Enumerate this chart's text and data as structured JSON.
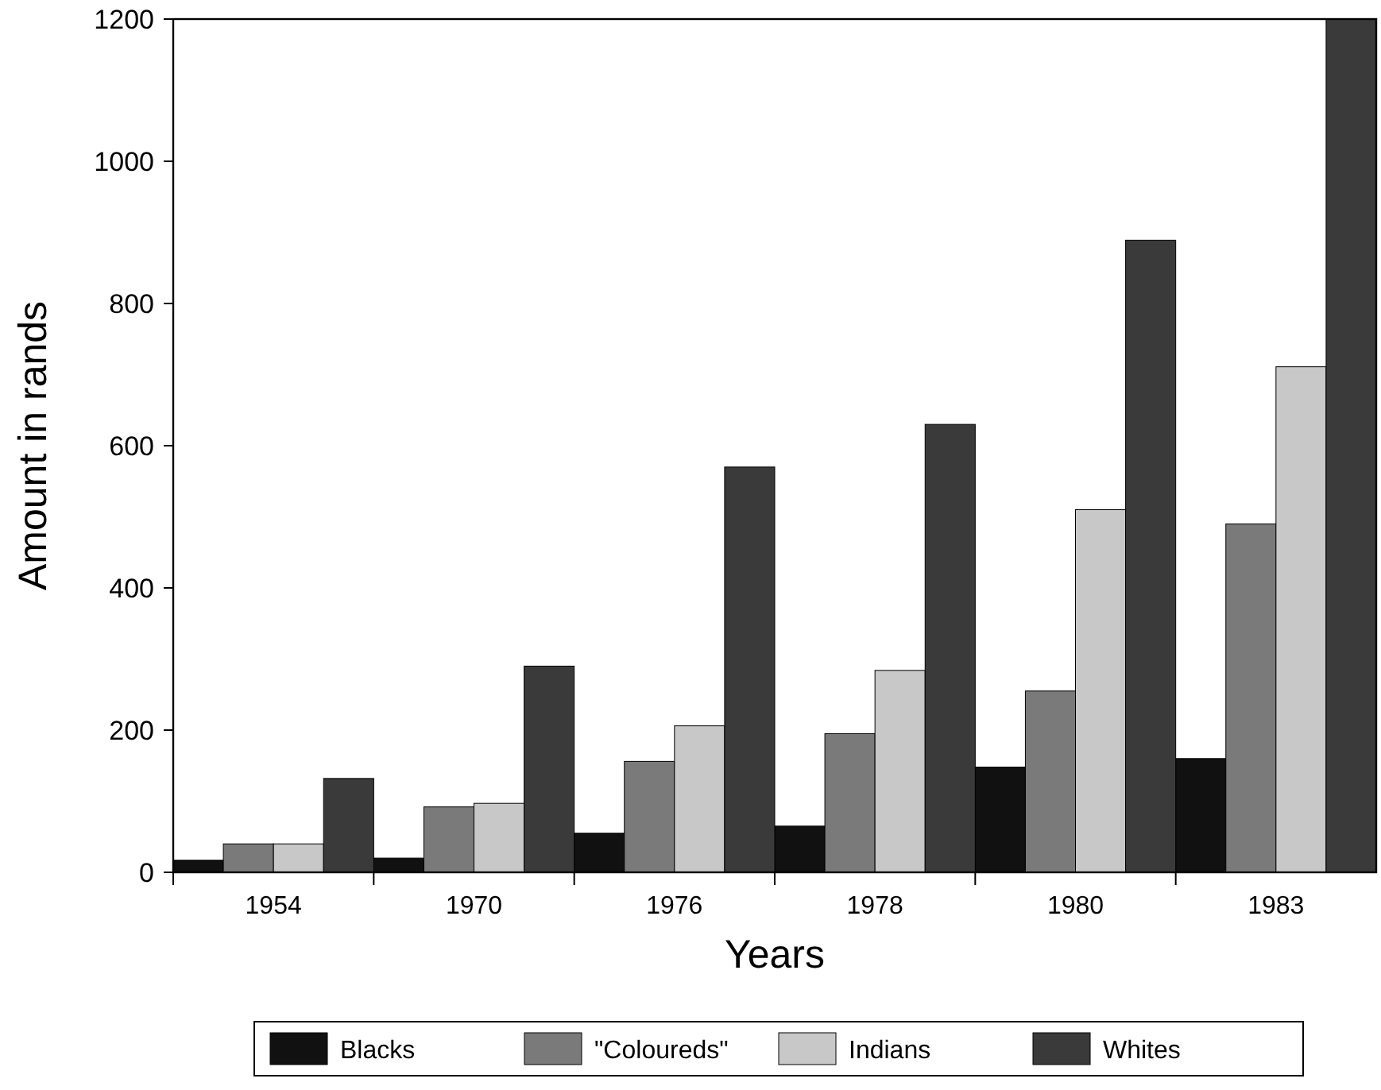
{
  "chart_data": {
    "type": "bar",
    "xlabel": "Years",
    "ylabel": "Amount in rands",
    "categories": [
      "1954",
      "1970",
      "1976",
      "1978",
      "1980",
      "1983"
    ],
    "series": [
      {
        "name": "Blacks",
        "color": "#111111",
        "values": [
          17,
          20,
          55,
          65,
          148,
          160
        ]
      },
      {
        "name": "\"Coloureds\"",
        "color": "#7a7a7a",
        "values": [
          40,
          92,
          156,
          195,
          255,
          490
        ]
      },
      {
        "name": "Indians",
        "color": "#c8c8c8",
        "values": [
          40,
          97,
          206,
          284,
          510,
          711
        ]
      },
      {
        "name": "Whites",
        "color": "#3a3a3a",
        "values": [
          132,
          290,
          570,
          630,
          889,
          1200
        ]
      }
    ],
    "ylim": [
      0,
      1200
    ],
    "yticks": [
      0,
      200,
      400,
      600,
      800,
      1000,
      1200
    ],
    "grid": false,
    "legend": "bottom"
  }
}
